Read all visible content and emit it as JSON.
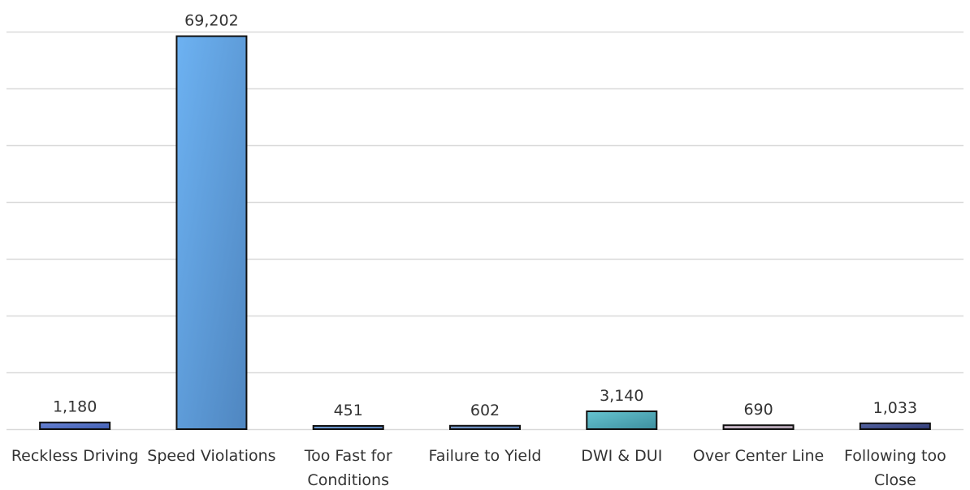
{
  "chart_data": {
    "type": "bar",
    "title": "",
    "xlabel": "",
    "ylabel": "",
    "categories": [
      "Reckless Driving",
      "Speed Violations",
      "Too Fast for Conditions",
      "Failure to Yield",
      "DWI & DUI",
      "Over Center Line",
      "Following too Close"
    ],
    "category_lines": [
      [
        "Reckless Driving"
      ],
      [
        "Speed Violations"
      ],
      [
        "Too Fast for",
        "Conditions"
      ],
      [
        "Failure to Yield"
      ],
      [
        "DWI & DUI"
      ],
      [
        "Over Center Line"
      ],
      [
        "Following too",
        "Close"
      ]
    ],
    "values": [
      1180,
      69202,
      451,
      602,
      3140,
      690,
      1033
    ],
    "value_labels": [
      "1,180",
      "69,202",
      "451",
      "602",
      "3,140",
      "690",
      "1,033"
    ],
    "ylim": [
      0,
      70000
    ],
    "grid": true,
    "legend": "none",
    "bar_colors": [
      [
        "#6b86d6",
        "#3f5cb0"
      ],
      [
        "#6db2f2",
        "#4f86c0"
      ],
      [
        "#79a6dc",
        "#4f77b3"
      ],
      [
        "#7fa0cf",
        "#567ab0"
      ],
      [
        "#66c4d0",
        "#3d8f9f"
      ],
      [
        "#d7c6d6",
        "#a99aa9"
      ],
      [
        "#5a6aa8",
        "#2b3570"
      ]
    ]
  }
}
